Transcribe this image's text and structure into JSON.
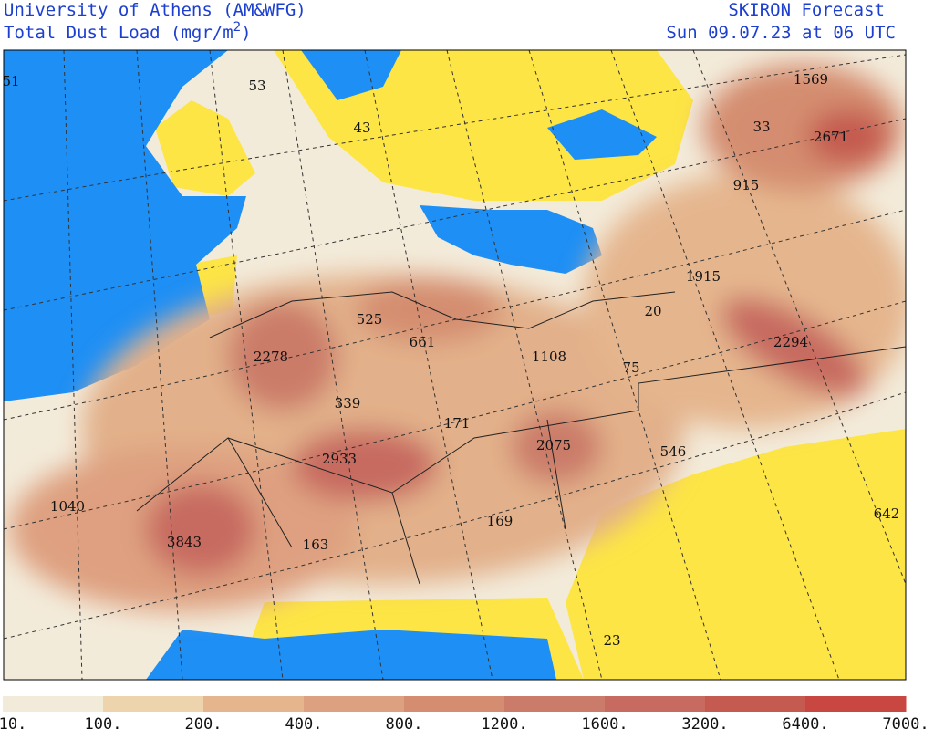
{
  "header": {
    "left_title": "University of Athens (AM&WFG)",
    "left_subtitle": "Total Dust Load (mgr/m",
    "left_subtitle_superscript": "2",
    "left_subtitle_end": ")",
    "right_title": "SKIRON Forecast",
    "right_subtitle": "Sun 09.07.23 at 06 UTC"
  },
  "map_labels": [
    51,
    53,
    43,
    1569,
    33,
    2671,
    915,
    1915,
    525,
    20,
    2278,
    661,
    1108,
    75,
    2294,
    339,
    171,
    2933,
    2075,
    546,
    1040,
    3843,
    163,
    169,
    642,
    23
  ],
  "colorbar": {
    "labels": [
      "10.",
      "100.",
      "200.",
      "400.",
      "800.",
      "1200.",
      "1600.",
      "3200.",
      "6400.",
      "7000."
    ],
    "colors": [
      "#f3ebda",
      "#eed4ad",
      "#e5b68e",
      "#dca180",
      "#d48d70",
      "#cb7b69",
      "#c76a60",
      "#c45a50",
      "#c84740"
    ]
  }
}
